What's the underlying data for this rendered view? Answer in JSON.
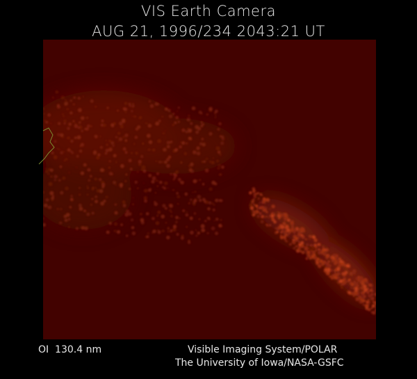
{
  "header": {
    "title": "VIS Earth Camera",
    "timestamp": "AUG 21, 1996/234 2043:21 UT"
  },
  "footer": {
    "filter": "OI  130.4 nm",
    "credit_line_1": "Visible Imaging System/POLAR",
    "credit_line_2": "The University of Iowa/NASA-GSFC"
  }
}
